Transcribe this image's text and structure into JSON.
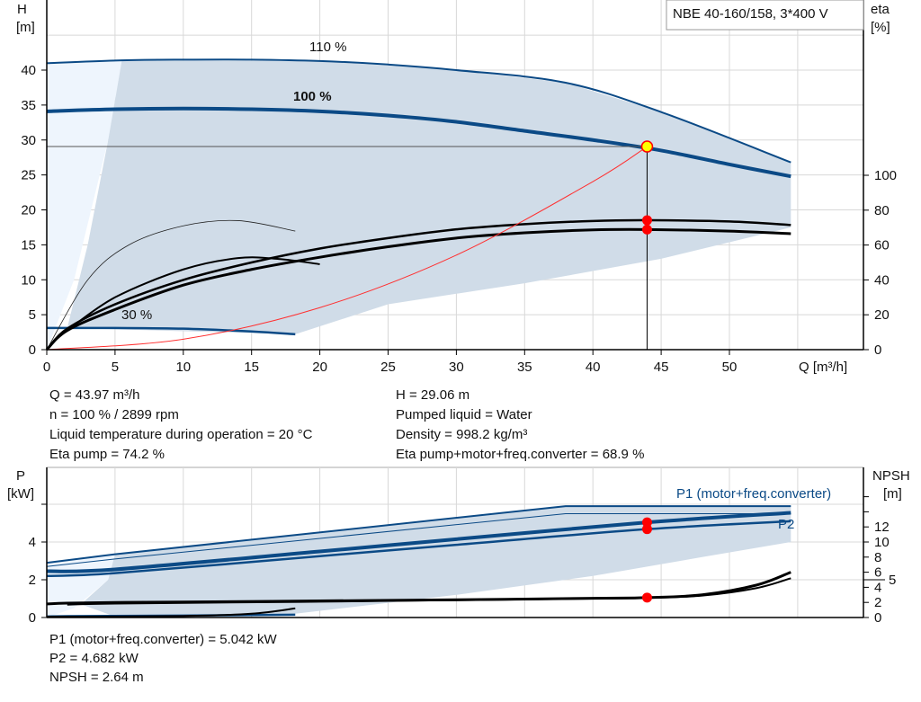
{
  "title_box": "NBE 40-160/158, 3*400 V",
  "colors": {
    "curve_blue": "#0b4a86",
    "envelope": "#d0dce8",
    "envelope_light": "#eef5fd",
    "operating_point": "#ff0000",
    "duty_point_fill": "#ffff00",
    "system_curve": "#ff3030"
  },
  "chart_data": [
    {
      "type": "line",
      "xlabel": "Q [m³/h]",
      "ylabel": [
        "H",
        "[m]"
      ],
      "y2label": [
        "eta",
        "[%]"
      ],
      "xticks": [
        "0",
        "5",
        "10",
        "15",
        "20",
        "25",
        "30",
        "35",
        "40",
        "45",
        "50"
      ],
      "yticks": [
        "0",
        "5",
        "10",
        "15",
        "20",
        "25",
        "30",
        "35",
        "40"
      ],
      "y2ticks": [
        "0",
        "20",
        "40",
        "60",
        "80",
        "100"
      ],
      "xlim": [
        0,
        60
      ],
      "ylim": [
        0,
        50
      ],
      "y2lim": [
        0,
        100
      ],
      "grid": true,
      "curve_labels": {
        "h110": "110 %",
        "h100": "100 %",
        "h30": "30 %"
      },
      "series": {
        "h110": {
          "axis": "H",
          "x": [
            0,
            5.5,
            10,
            15,
            20,
            25,
            30,
            38,
            45,
            54.5
          ],
          "y": [
            41.0,
            41.4,
            41.5,
            41.5,
            41.3,
            40.8,
            40.0,
            38.2,
            34.0,
            26.8
          ]
        },
        "h100": {
          "axis": "H",
          "x": [
            0,
            5,
            10,
            15,
            20,
            25,
            30,
            35,
            40,
            45,
            50,
            54.5
          ],
          "y": [
            34.1,
            34.4,
            34.5,
            34.4,
            34.1,
            33.5,
            32.6,
            31.3,
            30.0,
            28.5,
            26.5,
            24.8
          ]
        },
        "h30": {
          "axis": "H",
          "x": [
            0,
            1.5,
            5,
            10,
            15,
            18.2
          ],
          "y": [
            3.1,
            3.1,
            3.1,
            3.0,
            2.6,
            2.2
          ]
        },
        "eta_pump": {
          "axis": "eta",
          "x": [
            0,
            1.5,
            5,
            10,
            15,
            20,
            25,
            30,
            35,
            40,
            44,
            50,
            54.5
          ],
          "y": [
            0,
            12,
            26,
            40,
            50,
            58,
            64,
            69,
            72,
            73.8,
            74.2,
            73.5,
            71.5
          ]
        },
        "eta_total": {
          "axis": "eta",
          "x": [
            0,
            1.5,
            5,
            10,
            15,
            20,
            25,
            30,
            35,
            40,
            44,
            50,
            54.5
          ],
          "y": [
            0,
            11,
            23,
            37,
            46,
            53,
            59,
            64,
            67,
            68.7,
            68.9,
            68,
            66.5
          ]
        },
        "eta_low_a": {
          "axis": "eta",
          "x": [
            0,
            3,
            6,
            10,
            14,
            18.2
          ],
          "y": [
            0,
            40,
            60,
            71,
            74,
            68
          ]
        },
        "eta_low_b": {
          "axis": "eta",
          "x": [
            1.5,
            5,
            10,
            14,
            17,
            20
          ],
          "y": [
            11,
            30,
            46,
            52.5,
            52,
            49
          ]
        }
      },
      "system_curve": {
        "x": [
          0,
          10,
          20,
          30,
          40,
          43.97
        ],
        "y": [
          0,
          1.5,
          6.01,
          13.53,
          24.05,
          29.06
        ]
      },
      "operating_point": {
        "Q": 43.97,
        "H": 29.06,
        "eta_pump": 74.2,
        "eta_total": 68.9
      }
    },
    {
      "type": "line",
      "ylabel": [
        "P",
        "[kW]"
      ],
      "y2label": [
        "NPSH",
        "[m]"
      ],
      "yticks": [
        "0",
        "2",
        "4"
      ],
      "y2ticks": [
        "0",
        "2",
        "4",
        "5",
        "6",
        "8",
        "10",
        "12"
      ],
      "ylim": [
        0,
        6.5
      ],
      "y2lim": [
        0,
        16
      ],
      "curve_labels": {
        "p1": "P1 (motor+freq.converter)",
        "p2": "P2"
      },
      "series": {
        "p1_110": {
          "axis": "P",
          "x": [
            0,
            5,
            38,
            54.5
          ],
          "y": [
            2.9,
            3.35,
            5.9,
            5.9
          ]
        },
        "p2_110": {
          "axis": "P",
          "x": [
            0,
            5,
            38,
            54.5
          ],
          "y": [
            2.7,
            3.1,
            5.5,
            5.5
          ]
        },
        "p1": {
          "axis": "P",
          "x": [
            0,
            5,
            20,
            30,
            44,
            54.5
          ],
          "y": [
            2.45,
            2.55,
            3.5,
            4.15,
            5.042,
            5.55
          ]
        },
        "p2": {
          "axis": "P",
          "x": [
            0,
            5,
            20,
            30,
            44,
            54.5
          ],
          "y": [
            2.2,
            2.35,
            3.25,
            3.85,
            4.682,
            5.1
          ]
        },
        "p_30": {
          "axis": "P",
          "x": [
            0,
            1.5,
            10,
            18.2
          ],
          "y": [
            0.05,
            0.07,
            0.1,
            0.15
          ]
        },
        "npsh": {
          "axis": "NPSH",
          "x": [
            0,
            1.5,
            5,
            10,
            20,
            30,
            40,
            44,
            48,
            52,
            54.5
          ],
          "y": [
            1.8,
            1.9,
            2.0,
            2.05,
            2.2,
            2.35,
            2.55,
            2.64,
            3.0,
            4.3,
            6.0
          ]
        },
        "npsh_b": {
          "axis": "NPSH",
          "x": [
            1.5,
            5,
            20,
            40,
            44,
            48,
            52,
            54.5
          ],
          "y": [
            1.7,
            1.85,
            2.1,
            2.5,
            2.6,
            2.9,
            3.9,
            5.2
          ]
        },
        "npsh_30": {
          "axis": "NPSH",
          "x": [
            0,
            10,
            15,
            18.2
          ],
          "y": [
            0.1,
            0.2,
            0.5,
            1.2
          ]
        }
      },
      "operating_point": {
        "Q": 43.97,
        "P1": 5.042,
        "P2": 4.682,
        "NPSH": 2.64
      }
    }
  ],
  "info_top": {
    "left": [
      "Q = 43.97 m³/h",
      "n = 100 % / 2899 rpm",
      "Liquid temperature during operation = 20 °C",
      "Eta pump = 74.2 %"
    ],
    "right": [
      "H = 29.06 m",
      "Pumped liquid = Water",
      "Density = 998.2 kg/m³",
      "Eta pump+motor+freq.converter = 68.9 %"
    ]
  },
  "info_bottom": [
    "P1 (motor+freq.converter) = 5.042 kW",
    "P2 = 4.682 kW",
    "NPSH = 2.64 m"
  ]
}
